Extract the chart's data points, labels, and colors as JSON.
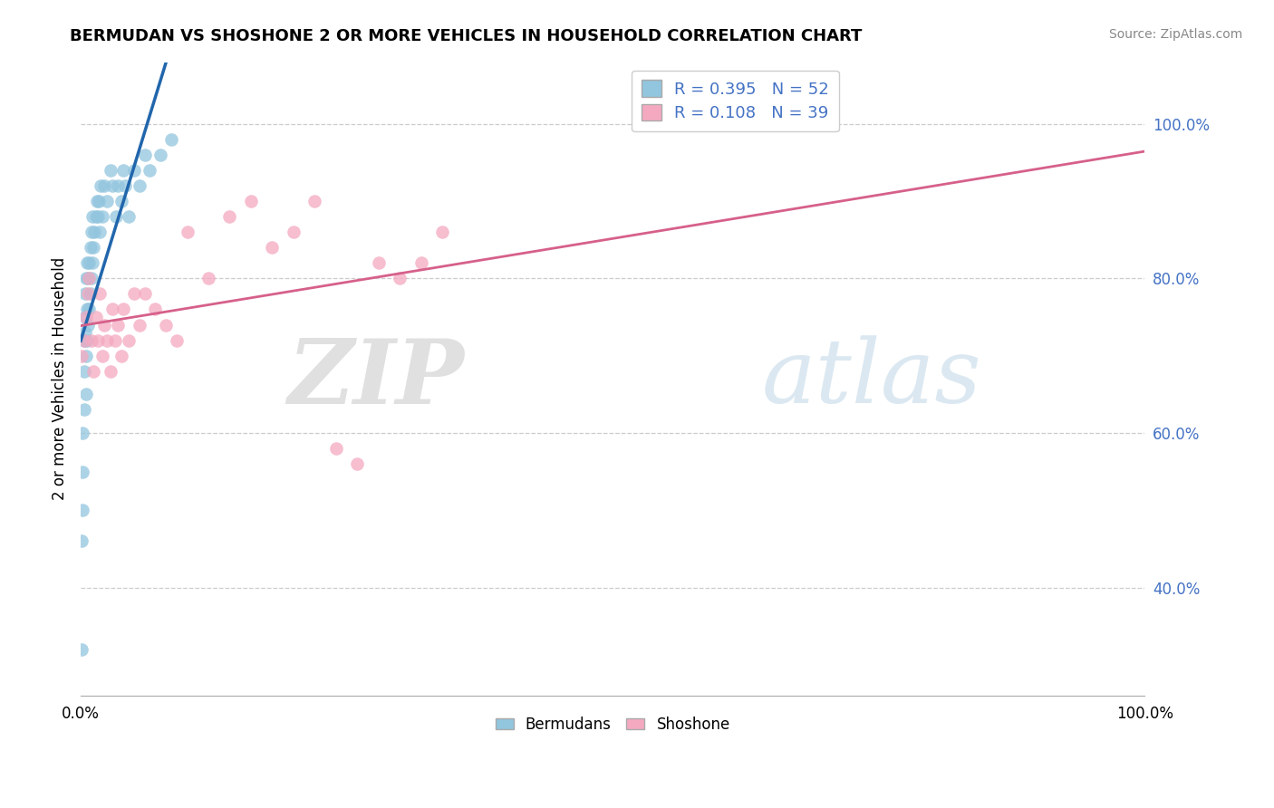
{
  "title": "BERMUDAN VS SHOSHONE 2 OR MORE VEHICLES IN HOUSEHOLD CORRELATION CHART",
  "source": "Source: ZipAtlas.com",
  "ylabel": "2 or more Vehicles in Household",
  "y_ticks": [
    "40.0%",
    "60.0%",
    "80.0%",
    "100.0%"
  ],
  "y_tick_values": [
    0.4,
    0.6,
    0.8,
    1.0
  ],
  "legend_blue_label": "Bermudans",
  "legend_pink_label": "Shoshone",
  "R_blue": 0.395,
  "N_blue": 52,
  "R_pink": 0.108,
  "N_pink": 39,
  "blue_color": "#92c5de",
  "pink_color": "#f4a9c0",
  "blue_line_color": "#2166ac",
  "pink_line_color": "#d6608a",
  "xlim": [
    0.0,
    1.0
  ],
  "ylim": [
    0.26,
    1.08
  ],
  "blue_scatter_x": [
    0.001,
    0.001,
    0.002,
    0.002,
    0.002,
    0.003,
    0.003,
    0.003,
    0.004,
    0.004,
    0.004,
    0.005,
    0.005,
    0.005,
    0.006,
    0.006,
    0.006,
    0.007,
    0.007,
    0.008,
    0.008,
    0.009,
    0.009,
    0.01,
    0.01,
    0.011,
    0.011,
    0.012,
    0.013,
    0.014,
    0.015,
    0.016,
    0.017,
    0.018,
    0.019,
    0.02,
    0.022,
    0.025,
    0.028,
    0.03,
    0.033,
    0.035,
    0.038,
    0.04,
    0.042,
    0.045,
    0.05,
    0.055,
    0.06,
    0.065,
    0.075,
    0.085
  ],
  "blue_scatter_y": [
    0.32,
    0.46,
    0.5,
    0.55,
    0.6,
    0.63,
    0.68,
    0.72,
    0.73,
    0.75,
    0.78,
    0.65,
    0.7,
    0.8,
    0.72,
    0.76,
    0.82,
    0.74,
    0.8,
    0.76,
    0.82,
    0.78,
    0.84,
    0.8,
    0.86,
    0.82,
    0.88,
    0.84,
    0.86,
    0.88,
    0.9,
    0.88,
    0.9,
    0.86,
    0.92,
    0.88,
    0.92,
    0.9,
    0.94,
    0.92,
    0.88,
    0.92,
    0.9,
    0.94,
    0.92,
    0.88,
    0.94,
    0.92,
    0.96,
    0.94,
    0.96,
    0.98
  ],
  "pink_scatter_x": [
    0.001,
    0.003,
    0.005,
    0.007,
    0.008,
    0.01,
    0.012,
    0.014,
    0.016,
    0.018,
    0.02,
    0.022,
    0.025,
    0.028,
    0.03,
    0.032,
    0.035,
    0.038,
    0.04,
    0.045,
    0.05,
    0.055,
    0.06,
    0.07,
    0.08,
    0.09,
    0.1,
    0.12,
    0.14,
    0.16,
    0.18,
    0.2,
    0.22,
    0.24,
    0.26,
    0.28,
    0.3,
    0.32,
    0.34
  ],
  "pink_scatter_y": [
    0.7,
    0.72,
    0.75,
    0.78,
    0.8,
    0.72,
    0.68,
    0.75,
    0.72,
    0.78,
    0.7,
    0.74,
    0.72,
    0.68,
    0.76,
    0.72,
    0.74,
    0.7,
    0.76,
    0.72,
    0.78,
    0.74,
    0.78,
    0.76,
    0.74,
    0.72,
    0.86,
    0.8,
    0.88,
    0.9,
    0.84,
    0.86,
    0.9,
    0.58,
    0.56,
    0.82,
    0.8,
    0.82,
    0.86
  ]
}
